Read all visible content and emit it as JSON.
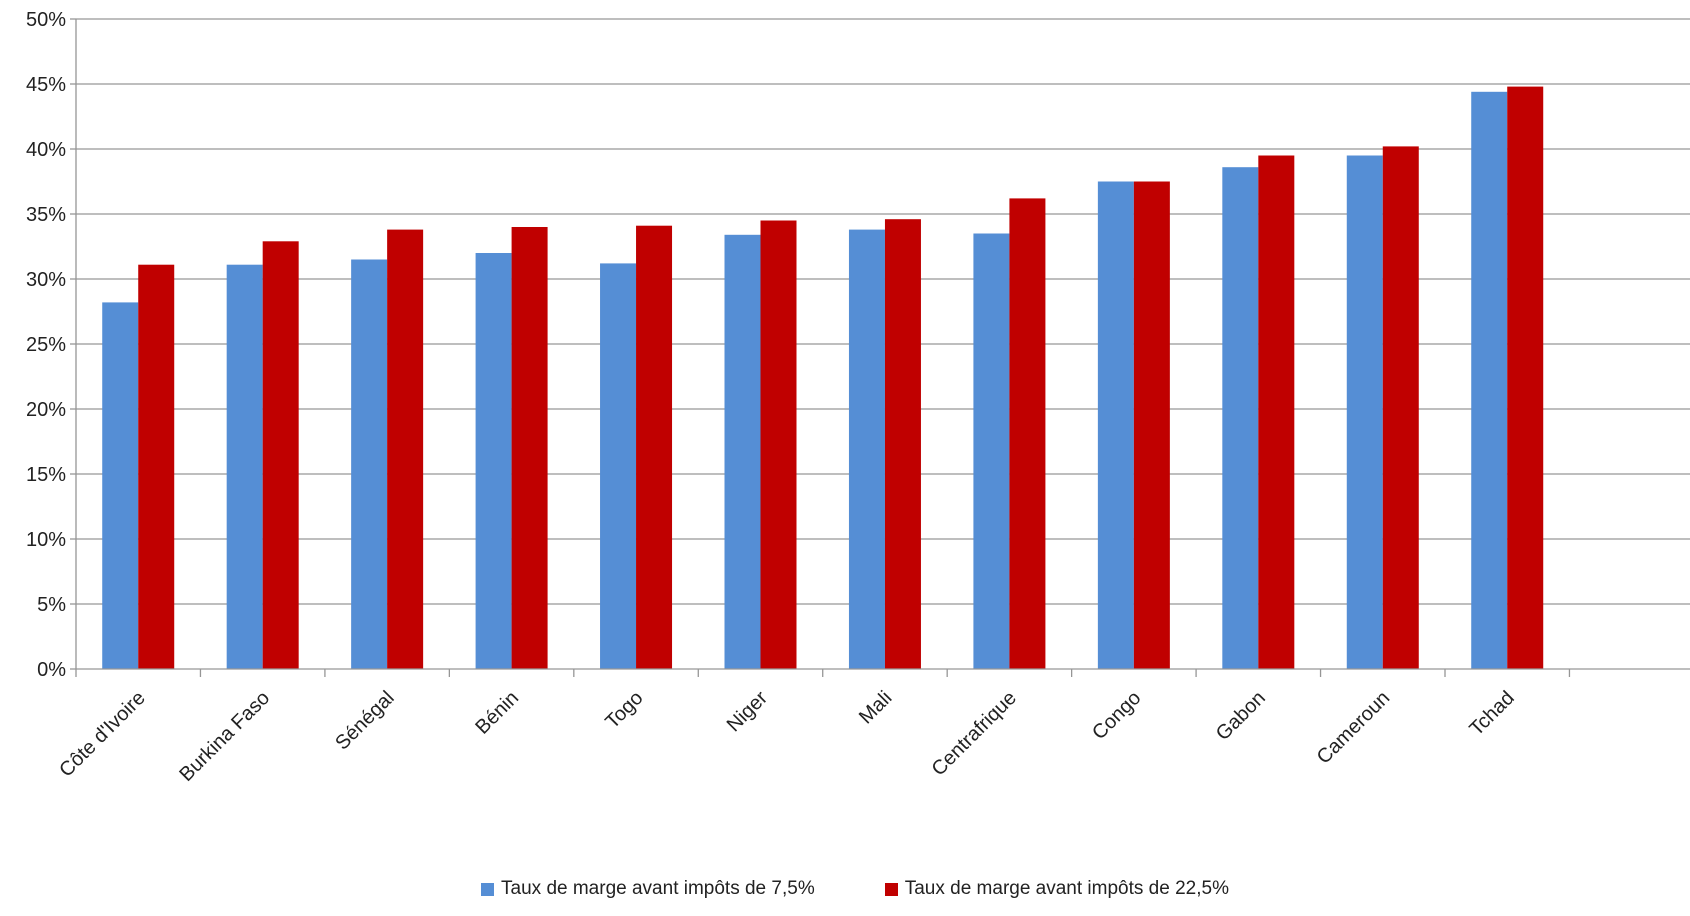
{
  "chart_data": {
    "type": "bar",
    "title": "",
    "xlabel": "",
    "ylabel": "",
    "ylim": [
      0,
      0.5
    ],
    "yticks": [
      "0%",
      "5%",
      "10%",
      "15%",
      "20%",
      "25%",
      "30%",
      "35%",
      "40%",
      "45%",
      "50%"
    ],
    "grid": true,
    "legend_position": "bottom",
    "categories": [
      "Côte d'Ivoire",
      "Burkina Faso",
      "Sénégal",
      "Bénin",
      "Togo",
      "Niger",
      "Mali",
      "Centrafrique",
      "Congo",
      "Gabon",
      "Cameroun",
      "Tchad"
    ],
    "series": [
      {
        "name": "Taux de marge avant impôts de 7,5%",
        "color": "#558ED5",
        "values": [
          0.282,
          0.311,
          0.315,
          0.32,
          0.312,
          0.334,
          0.338,
          0.335,
          0.375,
          0.386,
          0.395,
          0.444
        ]
      },
      {
        "name": "Taux de marge avant impôts de 22,5%",
        "color": "#C00000",
        "values": [
          0.311,
          0.329,
          0.338,
          0.34,
          0.341,
          0.345,
          0.346,
          0.362,
          0.375,
          0.395,
          0.402,
          0.448
        ]
      }
    ]
  },
  "colors": {
    "grid": "#969696",
    "axis": "#969696",
    "text": "#222222"
  }
}
